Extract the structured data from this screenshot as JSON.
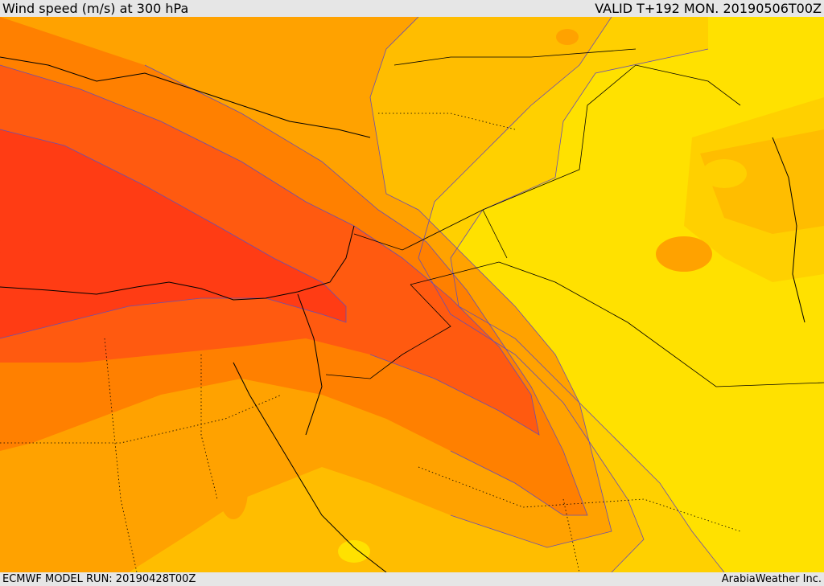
{
  "header": {
    "title": "Wind speed (m/s) at 300 hPa",
    "valid_time": "VALID T+192 MON. 20190506T00Z"
  },
  "footer": {
    "model_run": "ECMWF MODEL RUN: 20190428T00Z",
    "credit": "ArabiaWeather Inc."
  },
  "colors": {
    "band_weakest": "#ffe100",
    "band_weak": "#ffd000",
    "band_light": "#ffbd00",
    "band_moderate": "#ffa200",
    "band_strong": "#ff8000",
    "band_very_strong": "#ff5a10",
    "band_jet_core": "#ff3c14",
    "contour_line": "#6a4fb0",
    "boundary_line": "#000000"
  }
}
